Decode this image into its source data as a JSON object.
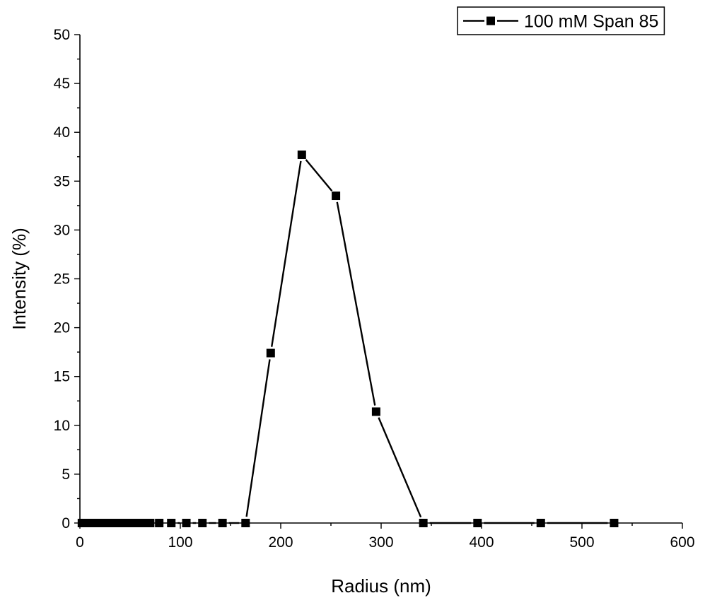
{
  "chart_data": {
    "type": "line",
    "xlabel": "Radius (nm)",
    "ylabel": "Intensity (%)",
    "xlim": [
      0,
      600
    ],
    "ylim": [
      0,
      50
    ],
    "xticks": [
      "0",
      "100",
      "200",
      "300",
      "400",
      "500",
      "600"
    ],
    "yticks": [
      "0",
      "5",
      "10",
      "15",
      "20",
      "25",
      "30",
      "35",
      "40",
      "45",
      "50"
    ],
    "grid": false,
    "legend_position": "top-right",
    "series": [
      {
        "name": "100 mM Span 85",
        "color": "#000000",
        "marker": "square",
        "x": [
          2,
          6,
          10,
          14,
          18,
          22,
          26,
          30,
          35,
          40,
          46,
          52,
          58,
          64,
          70,
          79,
          91,
          106,
          122,
          142,
          165,
          190,
          221,
          255,
          295,
          342,
          396,
          459,
          532
        ],
        "y": [
          0,
          0,
          0,
          0,
          0,
          0,
          0,
          0,
          0,
          0,
          0,
          0,
          0,
          0,
          0,
          0,
          0,
          0,
          0,
          0,
          0,
          17.4,
          37.7,
          33.5,
          11.4,
          0,
          0,
          0,
          0
        ]
      }
    ]
  }
}
